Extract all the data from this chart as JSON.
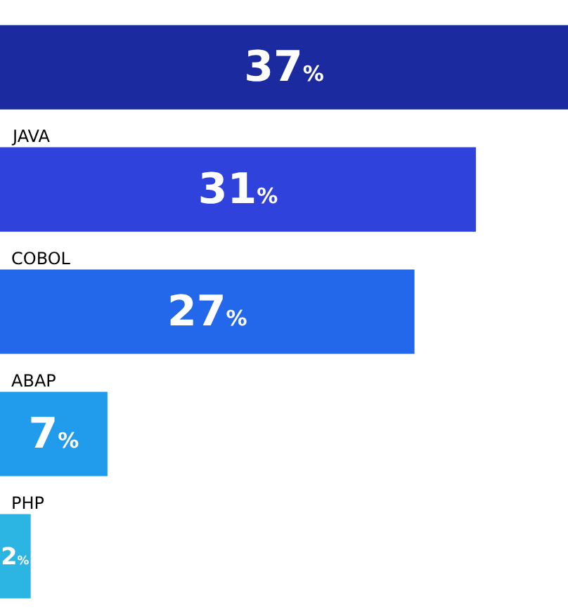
{
  "chart_data": {
    "type": "bar",
    "orientation": "horizontal",
    "categories": [
      null,
      "JAVA",
      "COBOL",
      "ABAP",
      "PHP"
    ],
    "values": [
      37,
      31,
      27,
      7,
      2
    ],
    "colors": [
      "#1b2a9e",
      "#2f43dc",
      "#2367ea",
      "#219bec",
      "#2cb4e2"
    ],
    "value_labels": [
      "37%",
      "31%",
      "27%",
      "7%",
      "2%"
    ]
  }
}
